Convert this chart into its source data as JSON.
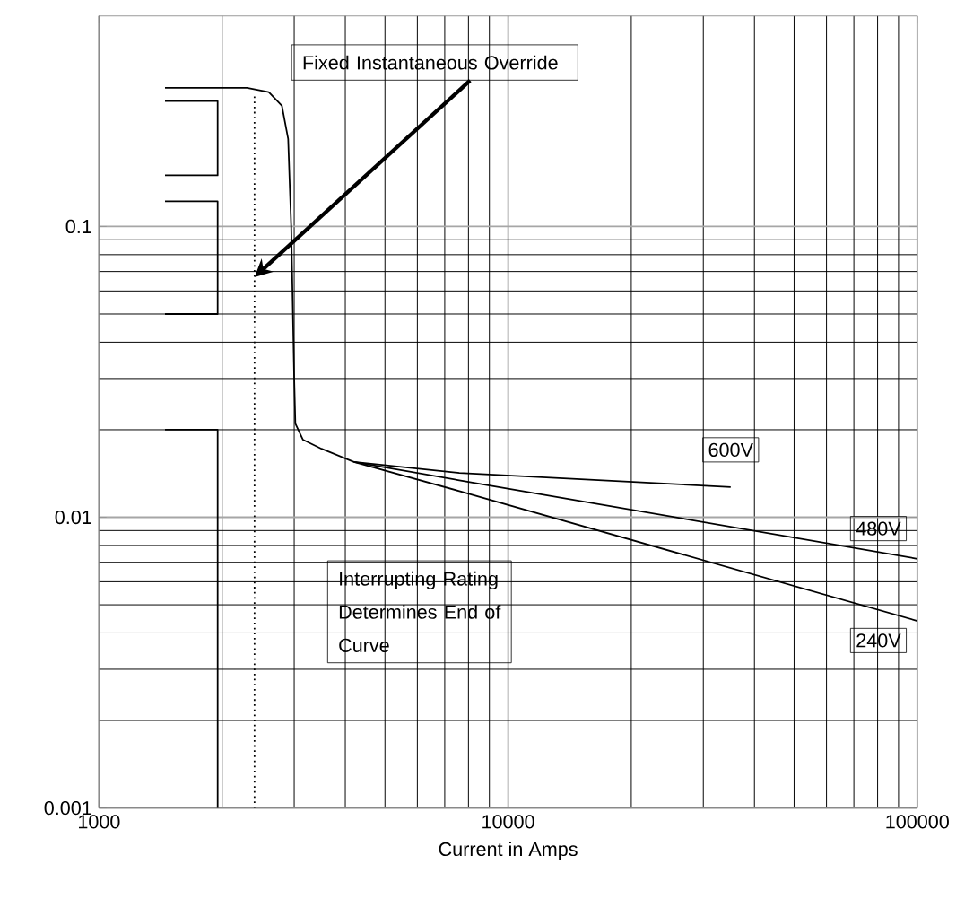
{
  "chart_data": {
    "type": "line",
    "xlabel": "Current in Amps",
    "log": "xy",
    "grid": true,
    "xlim": [
      1000,
      100000
    ],
    "ylim": [
      0.001,
      0.53
    ],
    "xticks": [
      1000,
      10000,
      100000
    ],
    "yticks": [
      0.001,
      0.01,
      0.1
    ],
    "series": [
      {
        "name": "600V",
        "color": "#000000",
        "x": [
          1450,
          2300,
          2600,
          2800,
          2900,
          2950,
          3000,
          3020,
          3150,
          3500,
          4200,
          7600,
          35000
        ],
        "values": [
          0.3,
          0.3,
          0.29,
          0.26,
          0.2,
          0.1,
          0.03,
          0.021,
          0.0185,
          0.0172,
          0.0155,
          0.0142,
          0.0127
        ]
      },
      {
        "name": "480V",
        "color": "#000000",
        "x": [
          4200,
          7600,
          100000
        ],
        "values": [
          0.0155,
          0.0134,
          0.0072
        ]
      },
      {
        "name": "240V",
        "color": "#000000",
        "x": [
          4200,
          7600,
          100000
        ],
        "values": [
          0.0155,
          0.0123,
          0.0044
        ]
      },
      {
        "color": "#000000",
        "x": [
          1450,
          1950,
          1950,
          1450
        ],
        "values": [
          0.27,
          0.27,
          0.15,
          0.15
        ]
      },
      {
        "color": "#000000",
        "x": [
          1450,
          1950,
          1950,
          1450
        ],
        "values": [
          0.122,
          0.122,
          0.05,
          0.05
        ]
      },
      {
        "color": "#000000",
        "x": [
          1450,
          1950,
          1950
        ],
        "values": [
          0.02,
          0.02,
          0.001
        ]
      },
      {
        "color": "#000000",
        "line_style": "dotted",
        "x": [
          2400,
          2400
        ],
        "values": [
          0.28,
          0.001
        ]
      }
    ],
    "annotations": [
      {
        "text": "Fixed Instantaneous Override",
        "x": 2400,
        "y": 0.067
      },
      "Interrupting Rating Determines End of Curve"
    ]
  }
}
